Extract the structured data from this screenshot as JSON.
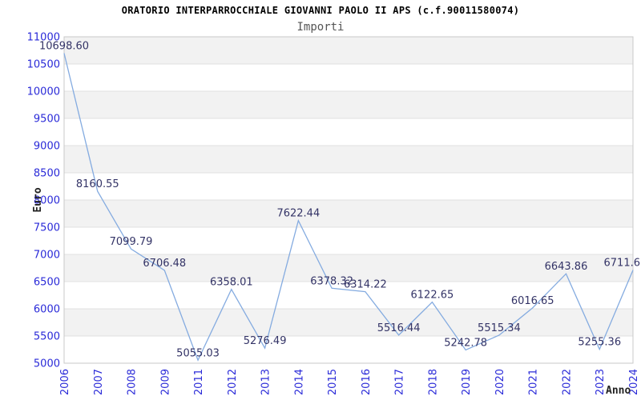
{
  "chart_data": {
    "type": "line",
    "title": "ORATORIO INTERPARROCCHIALE GIOVANNI PAOLO II APS (c.f.90011580074)",
    "subtitle": "Importi",
    "xlabel": "Anno",
    "ylabel": "Euro",
    "categories": [
      "2006",
      "2007",
      "2008",
      "2009",
      "2011",
      "2012",
      "2013",
      "2014",
      "2015",
      "2016",
      "2017",
      "2018",
      "2019",
      "2020",
      "2021",
      "2022",
      "2023",
      "2024"
    ],
    "series": [
      {
        "name": "Importi",
        "values": [
          10698.6,
          8160.55,
          7099.79,
          6706.48,
          5055.03,
          6358.01,
          5276.49,
          7622.44,
          6378.32,
          6314.22,
          5516.44,
          6122.65,
          5242.78,
          5515.34,
          6016.65,
          6643.86,
          5255.36,
          6711.6
        ],
        "point_labels": [
          "10698.60",
          "8160.55",
          "7099.79",
          "6706.48",
          "5055.03",
          "6358.01",
          "5276.49",
          "7622.44",
          "6378.32",
          "6314.22",
          "5516.44",
          "6122.65",
          "5242.78",
          "5515.34",
          "6016.65",
          "6643.86",
          "5255.36",
          "6711.6"
        ]
      }
    ],
    "ylim": [
      5000,
      11000
    ],
    "ytick_step": 500,
    "yticks": [
      5000,
      5500,
      6000,
      6500,
      7000,
      7500,
      8000,
      8500,
      9000,
      9500,
      10000,
      10500,
      11000
    ],
    "grid": "horizontal-alternating-bands",
    "legend": "none",
    "colors": {
      "line": "#84abe0",
      "axis_tick_text": "#2a2ad8",
      "value_label_text": "#333366",
      "band_gray": "#f2f2f2",
      "band_white": "#ffffff",
      "gridline": "#e0e0e0",
      "plot_border": "#c8c8c8",
      "title_text": "#000000",
      "subtitle_text": "#555555",
      "axis_name_text": "#222222",
      "background": "#ffffff"
    }
  }
}
